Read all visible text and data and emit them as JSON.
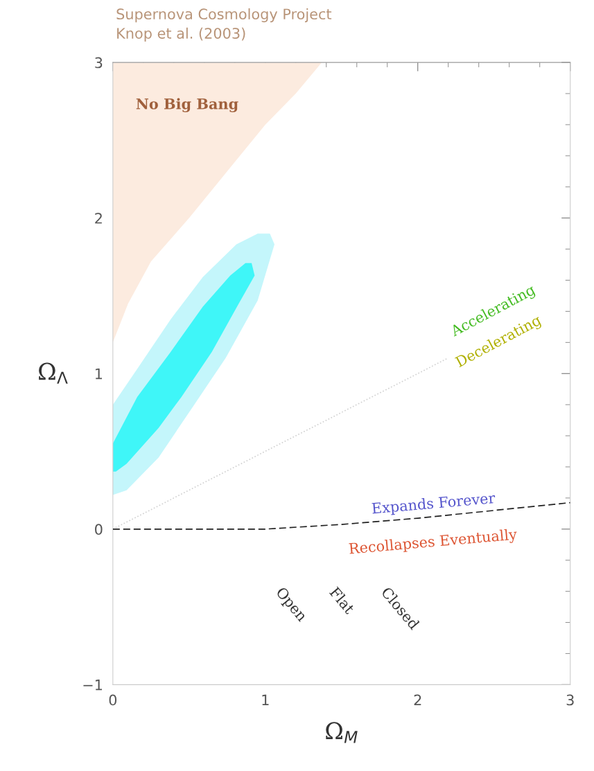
{
  "chart_data": {
    "type": "area",
    "title": "Supernova Cosmology Project",
    "subtitle": "Knop et al. (2003)",
    "xlabel": "Ω$_{M}$",
    "ylabel": "Ω$_{Λ}$",
    "xlim": [
      0,
      3
    ],
    "ylim": [
      -1,
      3
    ],
    "xticks": [
      0,
      1,
      2,
      3
    ],
    "yticks": [
      {
        "value": -1,
        "label": "−1"
      },
      0,
      1,
      2,
      3
    ],
    "grid": false,
    "series": [
      {
        "color": "#fcebdf",
        "x": [
          0,
          0,
          0.1,
          0.25,
          0.5,
          0.75,
          1.0,
          1.2,
          1.37,
          0
        ],
        "values": [
          3,
          1.2,
          1.45,
          1.72,
          2.0,
          2.3,
          2.6,
          2.8,
          3.0,
          3
        ]
      },
      {
        "color": "#c4f6fb",
        "x": [
          0,
          0,
          0.16,
          0.38,
          0.59,
          0.81,
          0.95,
          1.03,
          1.06,
          0.95,
          0.74,
          0.52,
          0.3,
          0.09,
          0
        ],
        "values": [
          0.22,
          0.8,
          1.03,
          1.35,
          1.62,
          1.83,
          1.9,
          1.9,
          1.83,
          1.47,
          1.1,
          0.78,
          0.46,
          0.25,
          0.22
        ]
      },
      {
        "color": "#3ff6f8",
        "x": [
          0,
          0,
          0.16,
          0.38,
          0.59,
          0.77,
          0.87,
          0.91,
          0.93,
          0.82,
          0.65,
          0.45,
          0.3,
          0.09,
          0.02,
          0
        ],
        "values": [
          0.37,
          0.55,
          0.85,
          1.14,
          1.43,
          1.63,
          1.71,
          1.71,
          1.63,
          1.44,
          1.14,
          0.85,
          0.65,
          0.42,
          0.37,
          0.37
        ]
      },
      {
        "type": "line",
        "color": "#d0d0d0",
        "line_style": "dotted",
        "x": [
          0,
          2.2
        ],
        "values": [
          0,
          1.1
        ]
      },
      {
        "type": "line",
        "color": "#202020",
        "line_style": "dashed",
        "x": [
          0,
          1,
          1.5,
          2,
          2.5,
          3
        ],
        "values": [
          0,
          0,
          0.03,
          0.07,
          0.12,
          0.17
        ]
      }
    ],
    "annotations": [
      "No Big Bang",
      "Accelerating",
      "Decelerating",
      "Expands Forever",
      "Recollapses Eventually",
      "Open",
      "Flat",
      "Closed"
    ]
  }
}
